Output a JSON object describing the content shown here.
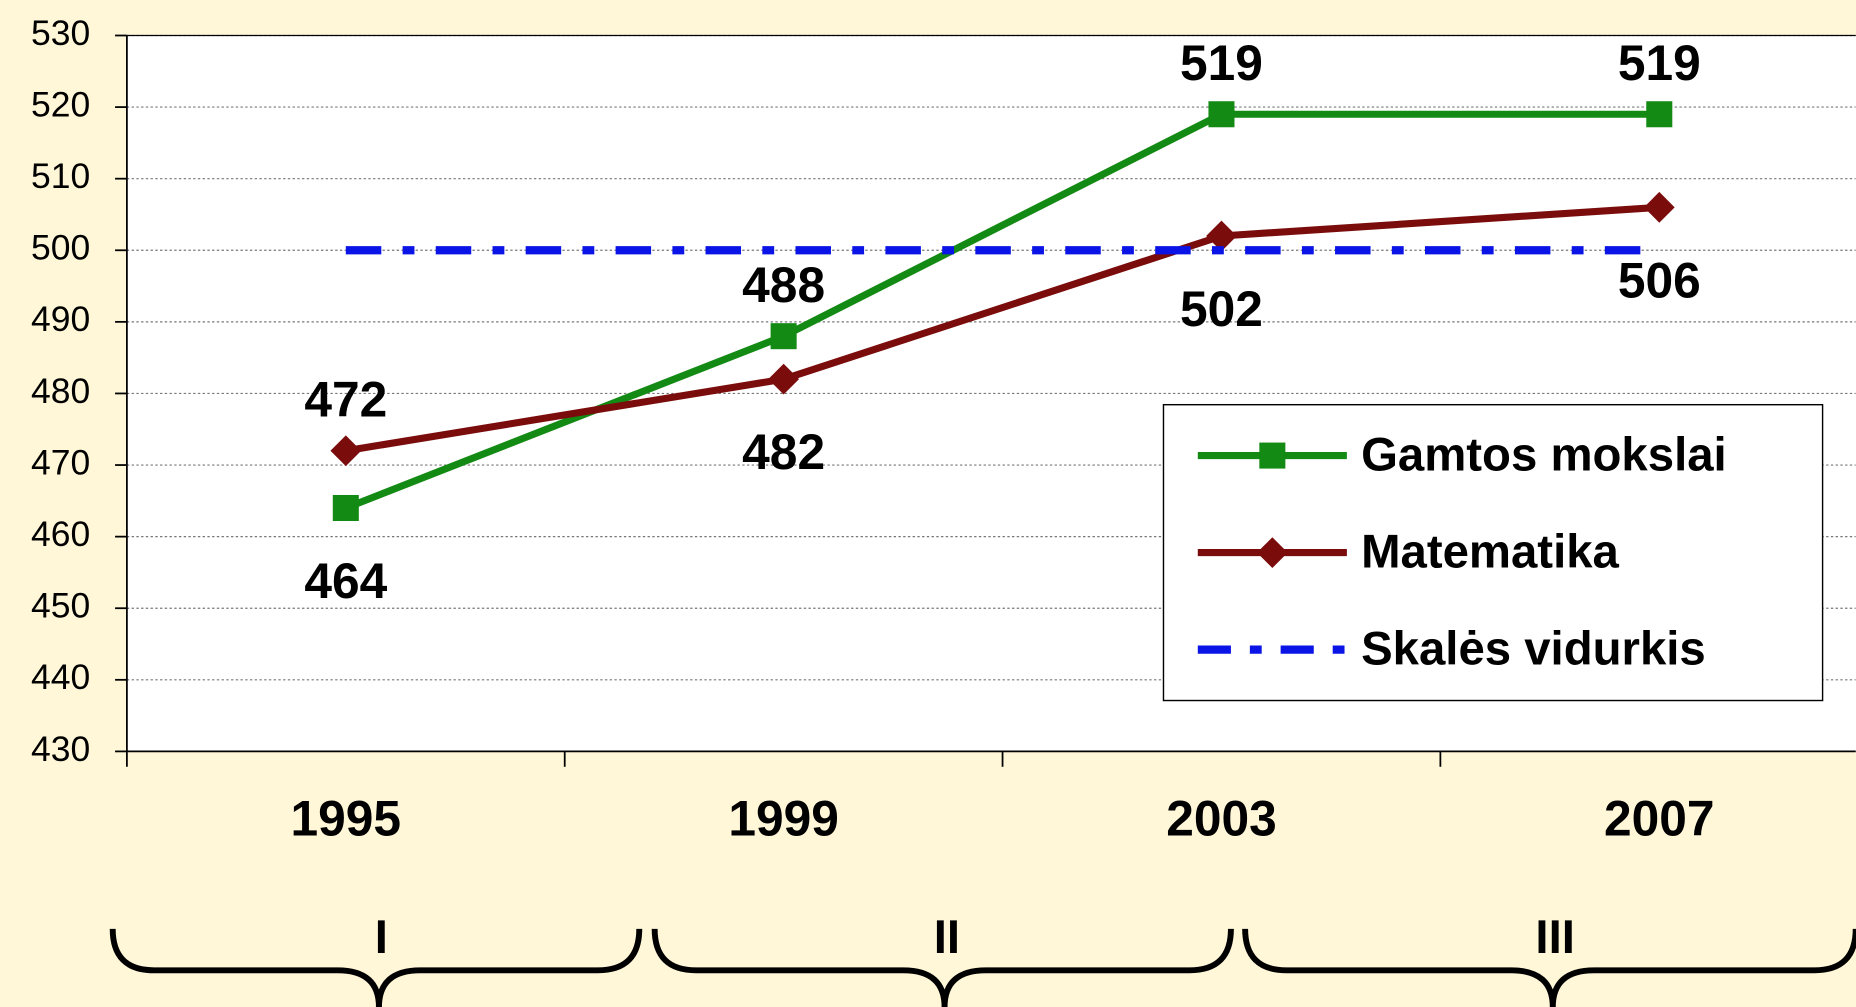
{
  "chart_data": {
    "type": "line",
    "categories": [
      "1995",
      "1999",
      "2003",
      "2007"
    ],
    "series": [
      {
        "name": "Gamtos mokslai",
        "color": "#138a13",
        "marker": "square",
        "values": [
          464,
          488,
          519,
          519
        ],
        "label_positions": [
          "below",
          "above",
          "above",
          "above"
        ]
      },
      {
        "name": "Matematika",
        "color": "#7b0c0c",
        "marker": "diamond",
        "values": [
          472,
          482,
          502,
          506
        ],
        "label_positions": [
          "above",
          "below",
          "below",
          "below"
        ]
      },
      {
        "name": "Skalės vidurkis",
        "color": "#0a14e6",
        "dash": "dash-dot",
        "values": [
          500,
          500,
          500,
          500
        ]
      }
    ],
    "ylim": [
      430,
      530
    ],
    "yticks": [
      430,
      440,
      450,
      460,
      470,
      480,
      490,
      500,
      510,
      520,
      530
    ],
    "grid": true,
    "legend": "right",
    "periods": [
      "I",
      "II",
      "III"
    ]
  }
}
